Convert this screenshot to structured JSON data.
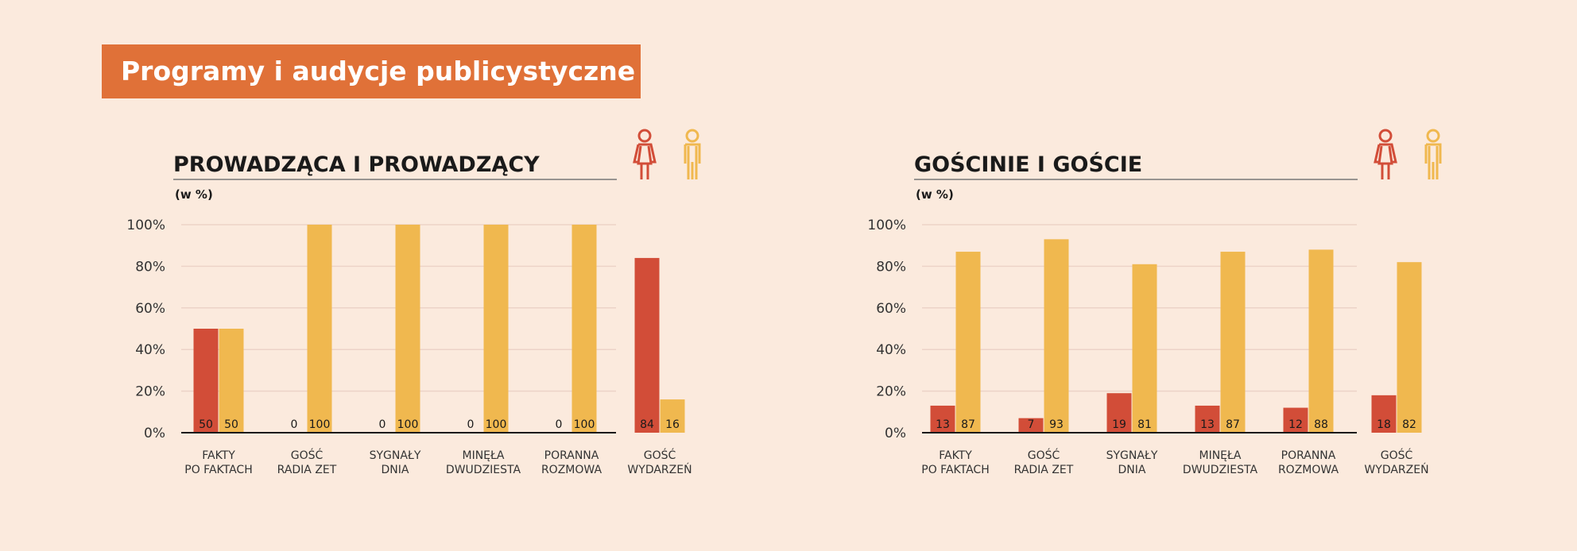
{
  "header": {
    "title": "Programy i audycje publicystyczne"
  },
  "colors": {
    "banner": "#e07138",
    "background": "#fbeadd",
    "women": "#d24d38",
    "men": "#f0b84f",
    "grid": "#ecd3c7",
    "axis": "#1a1a1a"
  },
  "icons": {
    "women": "female-figure-icon",
    "men": "male-figure-icon"
  },
  "chart_data": [
    {
      "type": "bar",
      "title": "PROWADZĄCA I PROWADZĄCY",
      "unit_label": "(w %)",
      "categories": [
        [
          "FAKTY",
          "PO FAKTACH"
        ],
        [
          "GOŚĆ",
          "RADIA ZET"
        ],
        [
          "SYGNAŁY",
          "DNIA"
        ],
        [
          "MINĘŁA",
          "DWUDZIESTA"
        ],
        [
          "PORANNA",
          "ROZMOWA"
        ],
        [
          "GOŚĆ",
          "WYDARZEŃ"
        ]
      ],
      "series": [
        {
          "color": "#d24d38",
          "values": [
            50,
            0,
            0,
            0,
            0,
            84
          ]
        },
        {
          "color": "#f0b84f",
          "values": [
            50,
            100,
            100,
            100,
            100,
            16
          ]
        }
      ],
      "yticks": [
        "0%",
        "20%",
        "40%",
        "60%",
        "80%",
        "100%"
      ],
      "ylim": [
        0,
        100
      ],
      "grid": true
    },
    {
      "type": "bar",
      "title": "GOŚCINIE I GOŚCIE",
      "unit_label": "(w %)",
      "categories": [
        [
          "FAKTY",
          "PO FAKTACH"
        ],
        [
          "GOŚĆ",
          "RADIA ZET"
        ],
        [
          "SYGNAŁY",
          "DNIA"
        ],
        [
          "MINĘŁA",
          "DWUDZIESTA"
        ],
        [
          "PORANNA",
          "ROZMOWA"
        ],
        [
          "GOŚĆ",
          "WYDARZEŃ"
        ]
      ],
      "series": [
        {
          "color": "#d24d38",
          "values": [
            13,
            7,
            19,
            13,
            12,
            18
          ]
        },
        {
          "color": "#f0b84f",
          "values": [
            87,
            93,
            81,
            87,
            88,
            82
          ]
        }
      ],
      "yticks": [
        "0%",
        "20%",
        "40%",
        "60%",
        "80%",
        "100%"
      ],
      "ylim": [
        0,
        100
      ],
      "grid": true
    }
  ]
}
